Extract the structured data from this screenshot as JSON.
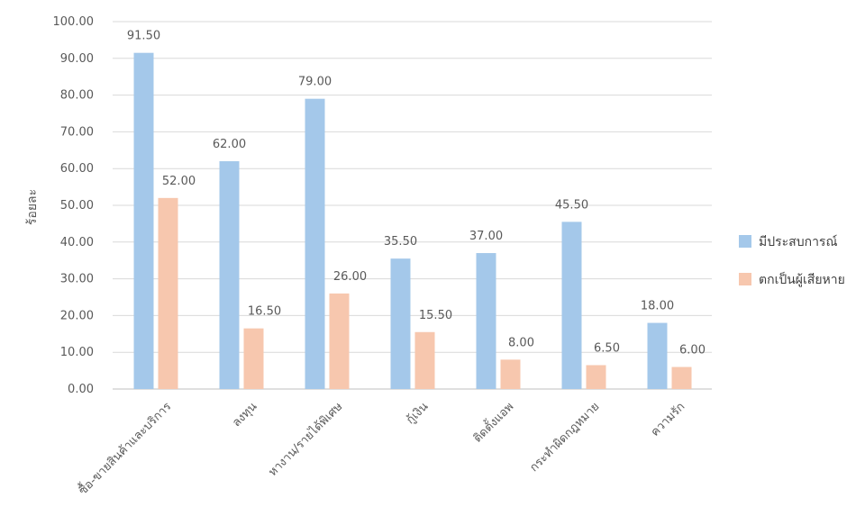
{
  "chart_data": {
    "type": "bar",
    "title": "",
    "xlabel": "",
    "ylabel": "ร้อยละ",
    "ylim": [
      0,
      100
    ],
    "yticks": [
      "0.00",
      "10.00",
      "20.00",
      "30.00",
      "40.00",
      "50.00",
      "60.00",
      "70.00",
      "80.00",
      "90.00",
      "100.00"
    ],
    "grid": true,
    "legend_position": "right",
    "categories": [
      "ซื้อ-ขายสินค้าและบริการ",
      "ลงทุน",
      "หางาน/รายได้พิเศษ",
      "กู้เงิน",
      "ติดตั้งแอพ",
      "กระทำผิดกฎหมาย",
      "ความรัก"
    ],
    "series": [
      {
        "name": "มีประสบการณ์",
        "color": "#A4C8EA",
        "values": [
          91.5,
          62.0,
          79.0,
          35.5,
          37.0,
          45.5,
          18.0
        ],
        "labels": [
          "91.50",
          "62.00",
          "79.00",
          "35.50",
          "37.00",
          "45.50",
          "18.00"
        ]
      },
      {
        "name": "ตกเป็นผู้เสียหาย",
        "color": "#F7C7AE",
        "values": [
          52.0,
          16.5,
          26.0,
          15.5,
          8.0,
          6.5,
          6.0
        ],
        "labels": [
          "52.00",
          "16.50",
          "26.00",
          "15.50",
          "8.00",
          "6.50",
          "6.00"
        ]
      }
    ]
  }
}
